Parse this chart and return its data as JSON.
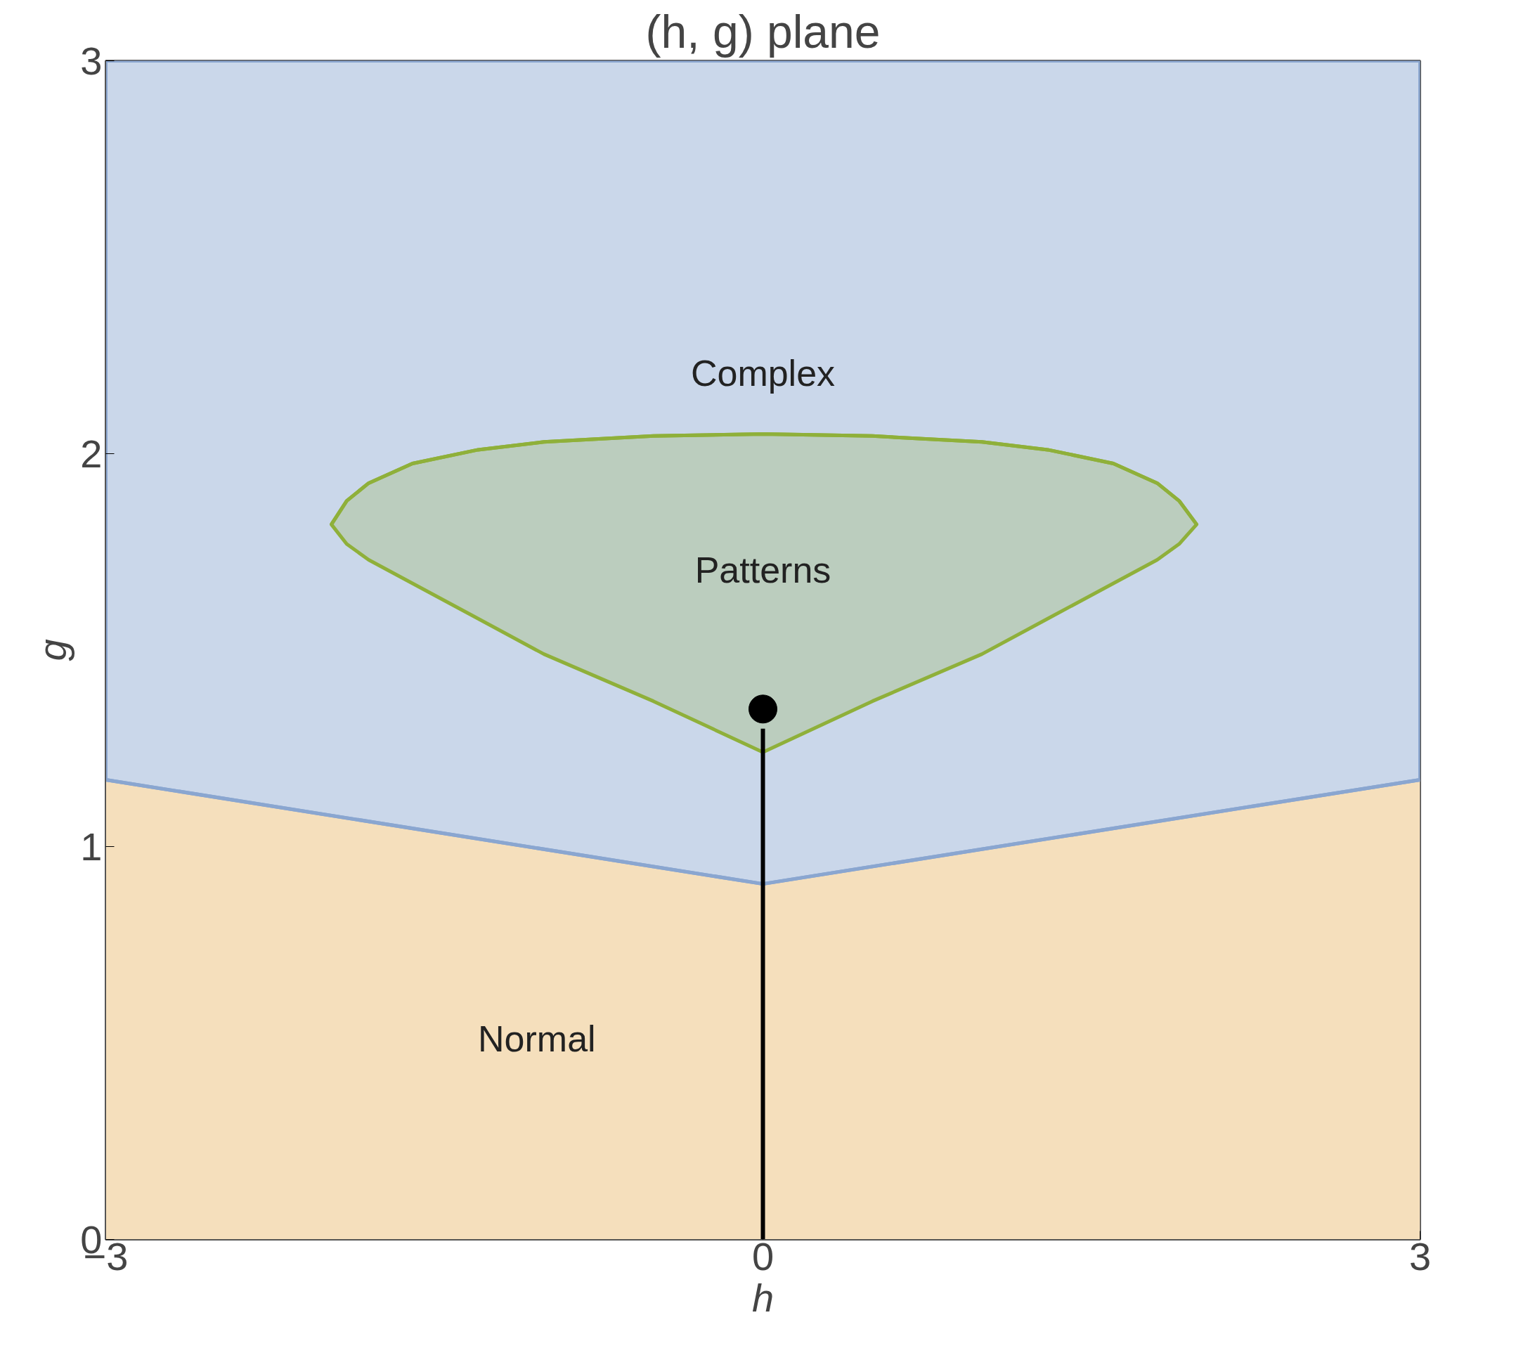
{
  "chart_data": {
    "type": "area",
    "title": "(h, g) plane",
    "xlabel": "h",
    "ylabel": "g",
    "xlim": [
      -3,
      3
    ],
    "ylim": [
      0,
      3
    ],
    "xticks": [
      -3,
      0,
      3
    ],
    "yticks": [
      0,
      1,
      2,
      3
    ],
    "grid": false,
    "series": [
      {
        "color": "#f5dfbc",
        "x": [
          -3,
          0,
          3
        ],
        "values": [
          1.17,
          0.905,
          1.17
        ]
      },
      {
        "type": "line",
        "color": "#8aa6d0",
        "x": [
          -3,
          0,
          3
        ],
        "values": [
          1.17,
          0.905,
          1.17
        ],
        "lower": [
          1.17,
          0.905,
          1.17
        ],
        "upper": [
          3,
          3,
          3
        ]
      },
      {
        "type": "line",
        "color": "#8fb03a",
        "x": [
          -1.97,
          -1.9,
          -1.8,
          -1.6,
          -1.3,
          -1,
          -0.5,
          0,
          0.5,
          1,
          1.3,
          1.6,
          1.8,
          1.9,
          1.98
        ],
        "values": [
          1.82,
          1.88,
          1.925,
          1.975,
          2.01,
          2.03,
          2.045,
          2.05,
          2.045,
          2.03,
          2.01,
          1.975,
          1.925,
          1.88,
          1.82
        ],
        "lower": [
          1.82,
          1.77,
          1.73,
          1.67,
          1.58,
          1.49,
          1.37,
          1.24,
          1.37,
          1.49,
          1.58,
          1.67,
          1.73,
          1.77,
          1.82
        ],
        "upper": [
          1.82,
          1.88,
          1.925,
          1.975,
          2.01,
          2.03,
          2.045,
          2.05,
          2.045,
          2.03,
          2.01,
          1.975,
          1.925,
          1.88,
          1.82
        ]
      },
      {
        "type": "line",
        "color": "#000000",
        "x": [
          0,
          0
        ],
        "values": [
          0,
          1.3
        ]
      },
      {
        "type": "scatter",
        "color": "#000000",
        "marker": "circle",
        "x": [
          0
        ],
        "values": [
          1.35
        ]
      }
    ],
    "annotations": [
      "Complex",
      "Patterns",
      "Normal"
    ]
  }
}
